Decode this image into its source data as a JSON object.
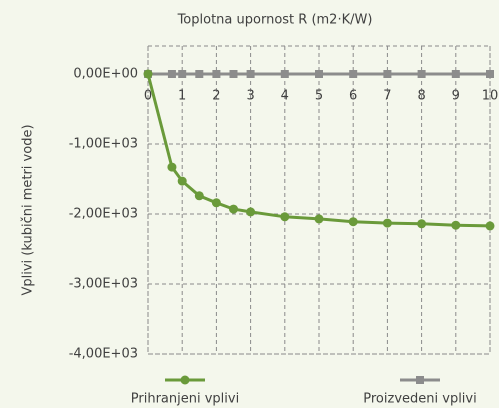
{
  "chart_data": {
    "type": "line",
    "x_label": "Toplotna upornost R (m2·K/W)",
    "y_label": "Vplivi (kubični metri vode)",
    "x": [
      0,
      0.7,
      1,
      1.5,
      2,
      2.5,
      3,
      4,
      5,
      6,
      7,
      8,
      9,
      10
    ],
    "series": [
      {
        "name": "Prihranjeni vplivi",
        "color": "#6a9a3a",
        "marker": "circle",
        "values": [
          0,
          -1330,
          -1530,
          -1740,
          -1840,
          -1930,
          -1970,
          -2040,
          -2070,
          -2110,
          -2130,
          -2140,
          -2160,
          -2170
        ]
      },
      {
        "name": "Proizvedeni vplivi",
        "color": "#8c8c8c",
        "marker": "square",
        "values": [
          0,
          0,
          0,
          0,
          0,
          0,
          0,
          0,
          0,
          0,
          0,
          0,
          0,
          0
        ]
      }
    ],
    "xlim": [
      0,
      10
    ],
    "xticks": [
      0,
      1,
      2,
      3,
      4,
      5,
      6,
      7,
      8,
      9,
      10
    ],
    "ylim": [
      -4000,
      400
    ],
    "yticks": [
      {
        "value": 0,
        "label": "0,00E+00"
      },
      {
        "value": -1000,
        "label": "-1,00E+03"
      },
      {
        "value": -2000,
        "label": "-2,00E+03"
      },
      {
        "value": -3000,
        "label": "-3,00E+03"
      },
      {
        "value": -4000,
        "label": "-4,00E+03"
      }
    ],
    "grid": true
  }
}
